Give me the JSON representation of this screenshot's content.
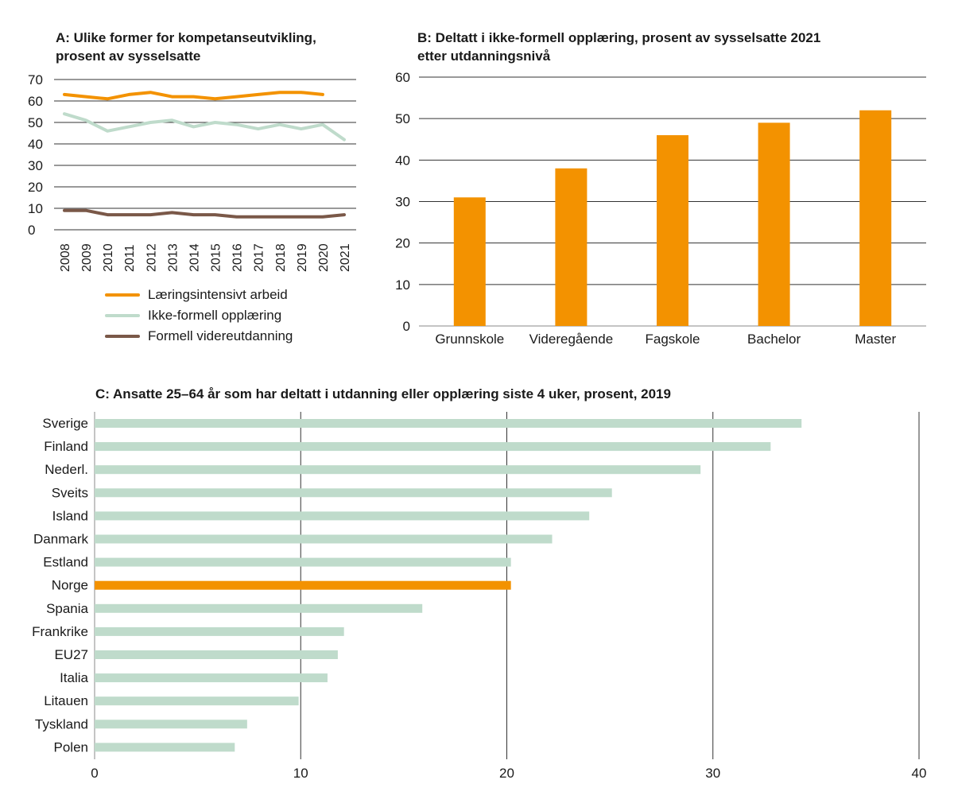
{
  "chart_data": [
    {
      "id": "A",
      "type": "line",
      "title_line1": "A: Ulike former for kompetanseutvikling,",
      "title_line2": "prosent av sysselsatte",
      "xlabel": "",
      "ylabel": "",
      "x": [
        "2008",
        "2009",
        "2010",
        "2011",
        "2012",
        "2013",
        "2014",
        "2015",
        "2016",
        "2017",
        "2018",
        "2019",
        "2020",
        "2021"
      ],
      "yticks": [
        0,
        10,
        20,
        30,
        40,
        50,
        60,
        70
      ],
      "ylim": [
        0,
        70
      ],
      "grid": true,
      "legend_position": "bottom",
      "series": [
        {
          "name": "Læringsintensivt arbeid",
          "color": "#F39200",
          "values": [
            63,
            62,
            61,
            63,
            64,
            62,
            62,
            61,
            62,
            63,
            64,
            64,
            63,
            null
          ]
        },
        {
          "name": "Ikke-formell opplæring",
          "color": "#BFDBCB",
          "values": [
            54,
            51,
            46,
            48,
            50,
            51,
            48,
            50,
            49,
            47,
            49,
            47,
            49,
            42
          ]
        },
        {
          "name": "Formell videreutdanning",
          "color": "#7A5848",
          "values": [
            9,
            9,
            7,
            7,
            7,
            8,
            7,
            7,
            6,
            6,
            6,
            6,
            6,
            7
          ]
        }
      ]
    },
    {
      "id": "B",
      "type": "bar",
      "title_line1": "B: Deltatt i ikke-formell opplæring, prosent av sysselsatte 2021",
      "title_line2": "etter utdanningsnivå",
      "xlabel": "",
      "ylabel": "",
      "categories": [
        "Grunnskole",
        "Videregående",
        "Fagskole",
        "Bachelor",
        "Master"
      ],
      "values": [
        31,
        38,
        46,
        49,
        52
      ],
      "color": "#F39200",
      "yticks": [
        0,
        10,
        20,
        30,
        40,
        50,
        60
      ],
      "ylim": [
        0,
        60
      ],
      "grid": true
    },
    {
      "id": "C",
      "type": "bar",
      "orientation": "horizontal",
      "title": "C: Ansatte 25–64 år som har deltatt i utdanning eller opplæring siste 4 uker, prosent, 2019",
      "xlabel": "",
      "ylabel": "",
      "categories": [
        "Sverige",
        "Finland",
        "Nederl.",
        "Sveits",
        "Island",
        "Danmark",
        "Estland",
        "Norge",
        "Spania",
        "Frankrike",
        "EU27",
        "Italia",
        "Litauen",
        "Tyskland",
        "Polen"
      ],
      "values": [
        34.3,
        32.8,
        29.4,
        25.1,
        24.0,
        22.2,
        20.2,
        20.2,
        15.9,
        12.1,
        11.8,
        11.3,
        9.9,
        7.4,
        6.8
      ],
      "highlight": "Norge",
      "color": "#BFDBCB",
      "highlight_color": "#F39200",
      "xticks": [
        0,
        10,
        20,
        30,
        40
      ],
      "xlim": [
        0,
        40
      ],
      "grid": true
    }
  ]
}
